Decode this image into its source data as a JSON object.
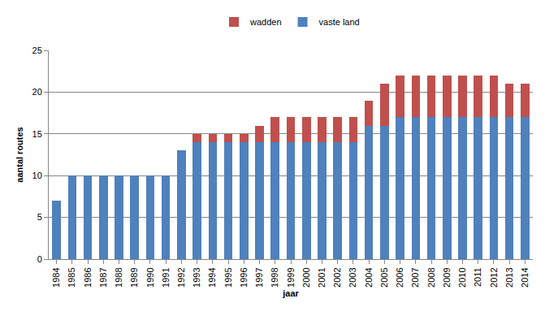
{
  "chart_data": {
    "type": "bar",
    "stacked": true,
    "x_label": "jaar",
    "y_label": "aantal routes",
    "categories": [
      "1984",
      "1985",
      "1986",
      "1987",
      "1988",
      "1989",
      "1990",
      "1991",
      "1992",
      "1993",
      "1994",
      "1995",
      "1996",
      "1997",
      "1998",
      "1999",
      "2000",
      "2001",
      "2002",
      "2003",
      "2004",
      "2005",
      "2006",
      "2007",
      "2008",
      "2009",
      "2010",
      "2011",
      "2012",
      "2013",
      "2014"
    ],
    "series": [
      {
        "name": "vaste land",
        "color": "#4f81bd",
        "values": [
          7,
          10,
          10,
          10,
          10,
          10,
          10,
          10,
          13,
          14,
          14,
          14,
          14,
          14,
          14,
          14,
          14,
          14,
          14,
          14,
          16,
          16,
          17,
          17,
          17,
          17,
          17,
          17,
          17,
          17,
          17
        ]
      },
      {
        "name": "wadden",
        "color": "#c0504d",
        "values": [
          0,
          0,
          0,
          0,
          0,
          0,
          0,
          0,
          0,
          1,
          1,
          1,
          1,
          2,
          3,
          3,
          3,
          3,
          3,
          3,
          3,
          5,
          5,
          5,
          5,
          5,
          5,
          5,
          5,
          4,
          4
        ]
      }
    ],
    "ylim": [
      0,
      25
    ],
    "yticks": [
      0,
      5,
      10,
      15,
      20,
      25
    ],
    "grid": true,
    "legend": "top"
  }
}
